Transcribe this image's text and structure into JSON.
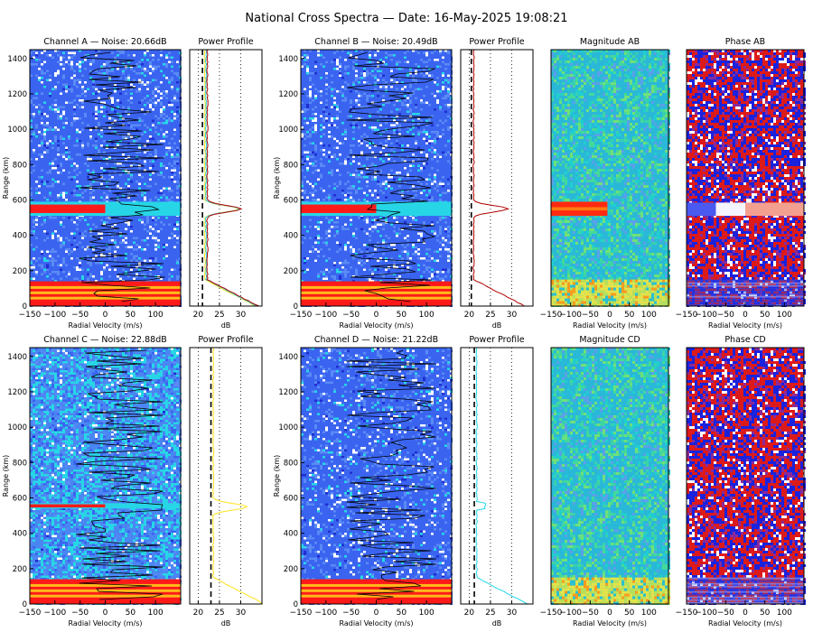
{
  "title": "National Cross Spectra — Date: 16-May-2025 19:08:21",
  "colors": {
    "noise_blue": "#3a64f0",
    "signal_cyan": "#27d6e6",
    "hot_red": "#ff1a1a",
    "phase_red": "#dd1a1a",
    "phase_blue": "#1a22dd",
    "line_yellow": "#ffe21a",
    "line_darkred": "#b00000",
    "line_cyan": "#20d8e8"
  },
  "chart_data": [
    {
      "id": "ch_a",
      "type": "heatmap",
      "title": "Channel A — Noise: 20.66dB",
      "xlabel": "Radial Velocity (m/s)",
      "ylabel": "Range (km)",
      "xlim": [
        -150,
        150
      ],
      "ylim": [
        0,
        1450
      ],
      "xticks": [
        "−150",
        "−100",
        "−50",
        "0",
        "50",
        "100"
      ],
      "yticks": [
        "0",
        "200",
        "400",
        "600",
        "800",
        "1000",
        "1200",
        "1400"
      ],
      "noise_db": 20.66,
      "strong_bands_km": [
        [
          510,
          590
        ]
      ],
      "clutter_km": [
        0,
        140
      ]
    },
    {
      "id": "pp_a",
      "type": "line",
      "title": "Power Profile",
      "xlabel": "dB",
      "xlim": [
        18,
        35
      ],
      "xticks": [
        "20",
        "25",
        "30"
      ],
      "ylim": [
        0,
        1450
      ],
      "noise_line_db": 21,
      "series": [
        {
          "color": "line_yellow"
        },
        {
          "color": "line_cyan"
        },
        {
          "color": "line_darkred"
        }
      ]
    },
    {
      "id": "ch_b",
      "type": "heatmap",
      "title": "Channel B — Noise: 20.49dB",
      "xlabel": "Radial Velocity (m/s)",
      "ylabel": "Range (km)",
      "xlim": [
        -150,
        150
      ],
      "ylim": [
        0,
        1450
      ],
      "xticks": [
        "−150",
        "−100",
        "−50",
        "0",
        "50",
        "100"
      ],
      "yticks": [
        "0",
        "200",
        "400",
        "600",
        "800",
        "1000",
        "1200",
        "1400"
      ],
      "noise_db": 20.49,
      "strong_bands_km": [
        [
          510,
          590
        ]
      ],
      "clutter_km": [
        0,
        140
      ]
    },
    {
      "id": "pp_b",
      "type": "line",
      "title": "Power Profile",
      "xlabel": "dB",
      "xlim": [
        18,
        35
      ],
      "xticks": [
        "20",
        "25",
        "30"
      ],
      "ylim": [
        0,
        1450
      ],
      "noise_line_db": 20.5,
      "series": [
        {
          "color": "line_darkred"
        }
      ]
    },
    {
      "id": "mag_ab",
      "type": "heatmap",
      "title": "Magnitude AB",
      "xlabel": "Radial Velocity (m/s)",
      "xlim": [
        -150,
        150
      ],
      "ylim": [
        0,
        1450
      ],
      "xticks": [
        "−150",
        "−100",
        "−50",
        "0",
        "50",
        "100"
      ]
    },
    {
      "id": "ph_ab",
      "type": "heatmap",
      "title": "Phase AB",
      "xlabel": "Radial Velocity (m/s)",
      "xlim": [
        -150,
        150
      ],
      "ylim": [
        0,
        1450
      ],
      "xticks": [
        "−150",
        "−100",
        "−50",
        "0",
        "50",
        "100"
      ]
    },
    {
      "id": "ch_c",
      "type": "heatmap",
      "title": "Channel C — Noise: 22.88dB",
      "xlabel": "Radial Velocity (m/s)",
      "ylabel": "Range (km)",
      "xlim": [
        -150,
        150
      ],
      "ylim": [
        0,
        1450
      ],
      "xticks": [
        "−150",
        "−100",
        "−50",
        "0",
        "50",
        "100"
      ],
      "yticks": [
        "0",
        "200",
        "400",
        "600",
        "800",
        "1000",
        "1200",
        "1400"
      ],
      "noise_db": 22.88,
      "strong_bands_km": [
        [
          540,
          570
        ]
      ],
      "clutter_km": [
        0,
        140
      ]
    },
    {
      "id": "pp_c",
      "type": "line",
      "title": "Power Profile",
      "xlabel": "dB",
      "xlim": [
        18,
        35
      ],
      "xticks": [
        "20",
        "25",
        "30"
      ],
      "ylim": [
        0,
        1450
      ],
      "noise_line_db": 23,
      "series": [
        {
          "color": "line_yellow"
        }
      ]
    },
    {
      "id": "ch_d",
      "type": "heatmap",
      "title": "Channel D — Noise: 21.22dB",
      "xlabel": "Radial Velocity (m/s)",
      "ylabel": "Range (km)",
      "xlim": [
        -150,
        150
      ],
      "ylim": [
        0,
        1450
      ],
      "xticks": [
        "−150",
        "−100",
        "−50",
        "0",
        "50",
        "100"
      ],
      "yticks": [
        "0",
        "200",
        "400",
        "600",
        "800",
        "1000",
        "1200",
        "1400"
      ],
      "noise_db": 21.22,
      "strong_bands_km": [],
      "clutter_km": [
        0,
        140
      ]
    },
    {
      "id": "pp_d",
      "type": "line",
      "title": "Power Profile",
      "xlabel": "dB",
      "xlim": [
        18,
        35
      ],
      "xticks": [
        "20",
        "25",
        "30"
      ],
      "ylim": [
        0,
        1450
      ],
      "noise_line_db": 21.2,
      "series": [
        {
          "color": "line_cyan"
        }
      ]
    },
    {
      "id": "mag_cd",
      "type": "heatmap",
      "title": "Magnitude CD",
      "xlabel": "Radial Velocity (m/s)",
      "xlim": [
        -150,
        150
      ],
      "ylim": [
        0,
        1450
      ],
      "xticks": [
        "−150",
        "−100",
        "−50",
        "0",
        "50",
        "100"
      ]
    },
    {
      "id": "ph_cd",
      "type": "heatmap",
      "title": "Phase CD",
      "xlabel": "Radial Velocity (m/s)",
      "xlim": [
        -150,
        150
      ],
      "ylim": [
        0,
        1450
      ],
      "xticks": [
        "−150",
        "−100",
        "−50",
        "0",
        "50",
        "100"
      ]
    }
  ]
}
